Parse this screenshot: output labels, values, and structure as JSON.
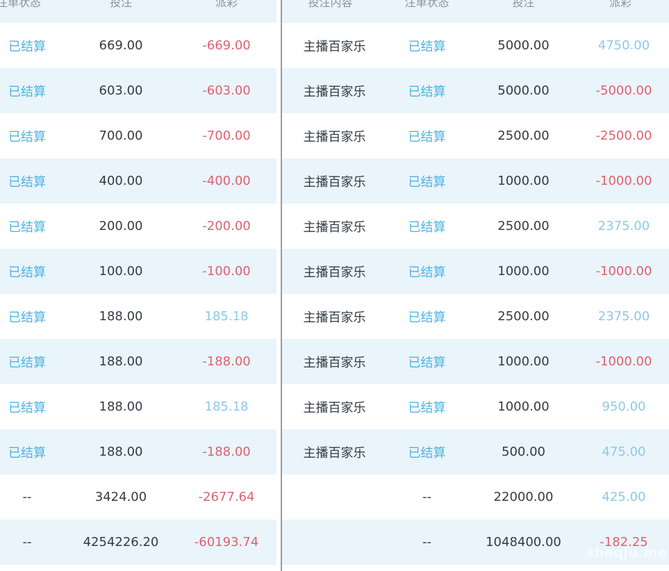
{
  "watermark": {
    "text": "sheqju.me"
  },
  "colors": {
    "stripe_blue": "#e9f4fb",
    "status_blue": "#4fb3e0",
    "payout_positive_blue": "#8dc9ea",
    "negative_red": "#e0616e",
    "dark_text": "#333b43",
    "header_gray": "#8e959c",
    "divider_gray": "#9b9b9b"
  },
  "left_table": {
    "columns": [
      {
        "key": "status",
        "label": "注单状态"
      },
      {
        "key": "bet",
        "label": "投注"
      },
      {
        "key": "payout",
        "label": "派彩"
      }
    ],
    "rows": [
      {
        "status": "已结算",
        "bet": "669.00",
        "payout": "-669.00"
      },
      {
        "status": "已结算",
        "bet": "603.00",
        "payout": "-603.00"
      },
      {
        "status": "已结算",
        "bet": "700.00",
        "payout": "-700.00"
      },
      {
        "status": "已结算",
        "bet": "400.00",
        "payout": "-400.00"
      },
      {
        "status": "已结算",
        "bet": "200.00",
        "payout": "-200.00"
      },
      {
        "status": "已结算",
        "bet": "100.00",
        "payout": "-100.00"
      },
      {
        "status": "已结算",
        "bet": "188.00",
        "payout": "185.18"
      },
      {
        "status": "已结算",
        "bet": "188.00",
        "payout": "-188.00"
      },
      {
        "status": "已结算",
        "bet": "188.00",
        "payout": "185.18"
      },
      {
        "status": "已结算",
        "bet": "188.00",
        "payout": "-188.00"
      },
      {
        "status": "--",
        "bet": "3424.00",
        "payout": "-2677.64"
      },
      {
        "status": "--",
        "bet": "4254226.20",
        "payout": "-60193.74"
      }
    ]
  },
  "right_table": {
    "columns": [
      {
        "key": "content",
        "label": "投注内容"
      },
      {
        "key": "status",
        "label": "注单状态"
      },
      {
        "key": "bet",
        "label": "投注"
      },
      {
        "key": "payout",
        "label": "派彩"
      }
    ],
    "rows": [
      {
        "content": "主播百家乐",
        "status": "已结算",
        "bet": "5000.00",
        "payout": "4750.00"
      },
      {
        "content": "主播百家乐",
        "status": "已结算",
        "bet": "5000.00",
        "payout": "-5000.00"
      },
      {
        "content": "主播百家乐",
        "status": "已结算",
        "bet": "2500.00",
        "payout": "-2500.00"
      },
      {
        "content": "主播百家乐",
        "status": "已结算",
        "bet": "1000.00",
        "payout": "-1000.00"
      },
      {
        "content": "主播百家乐",
        "status": "已结算",
        "bet": "2500.00",
        "payout": "2375.00"
      },
      {
        "content": "主播百家乐",
        "status": "已结算",
        "bet": "1000.00",
        "payout": "-1000.00"
      },
      {
        "content": "主播百家乐",
        "status": "已结算",
        "bet": "2500.00",
        "payout": "2375.00"
      },
      {
        "content": "主播百家乐",
        "status": "已结算",
        "bet": "1000.00",
        "payout": "-1000.00"
      },
      {
        "content": "主播百家乐",
        "status": "已结算",
        "bet": "1000.00",
        "payout": "950.00"
      },
      {
        "content": "主播百家乐",
        "status": "已结算",
        "bet": "500.00",
        "payout": "475.00"
      },
      {
        "content": "",
        "status": "--",
        "bet": "22000.00",
        "payout": "425.00"
      },
      {
        "content": "",
        "status": "--",
        "bet": "1048400.00",
        "payout": "-182.25"
      }
    ]
  }
}
